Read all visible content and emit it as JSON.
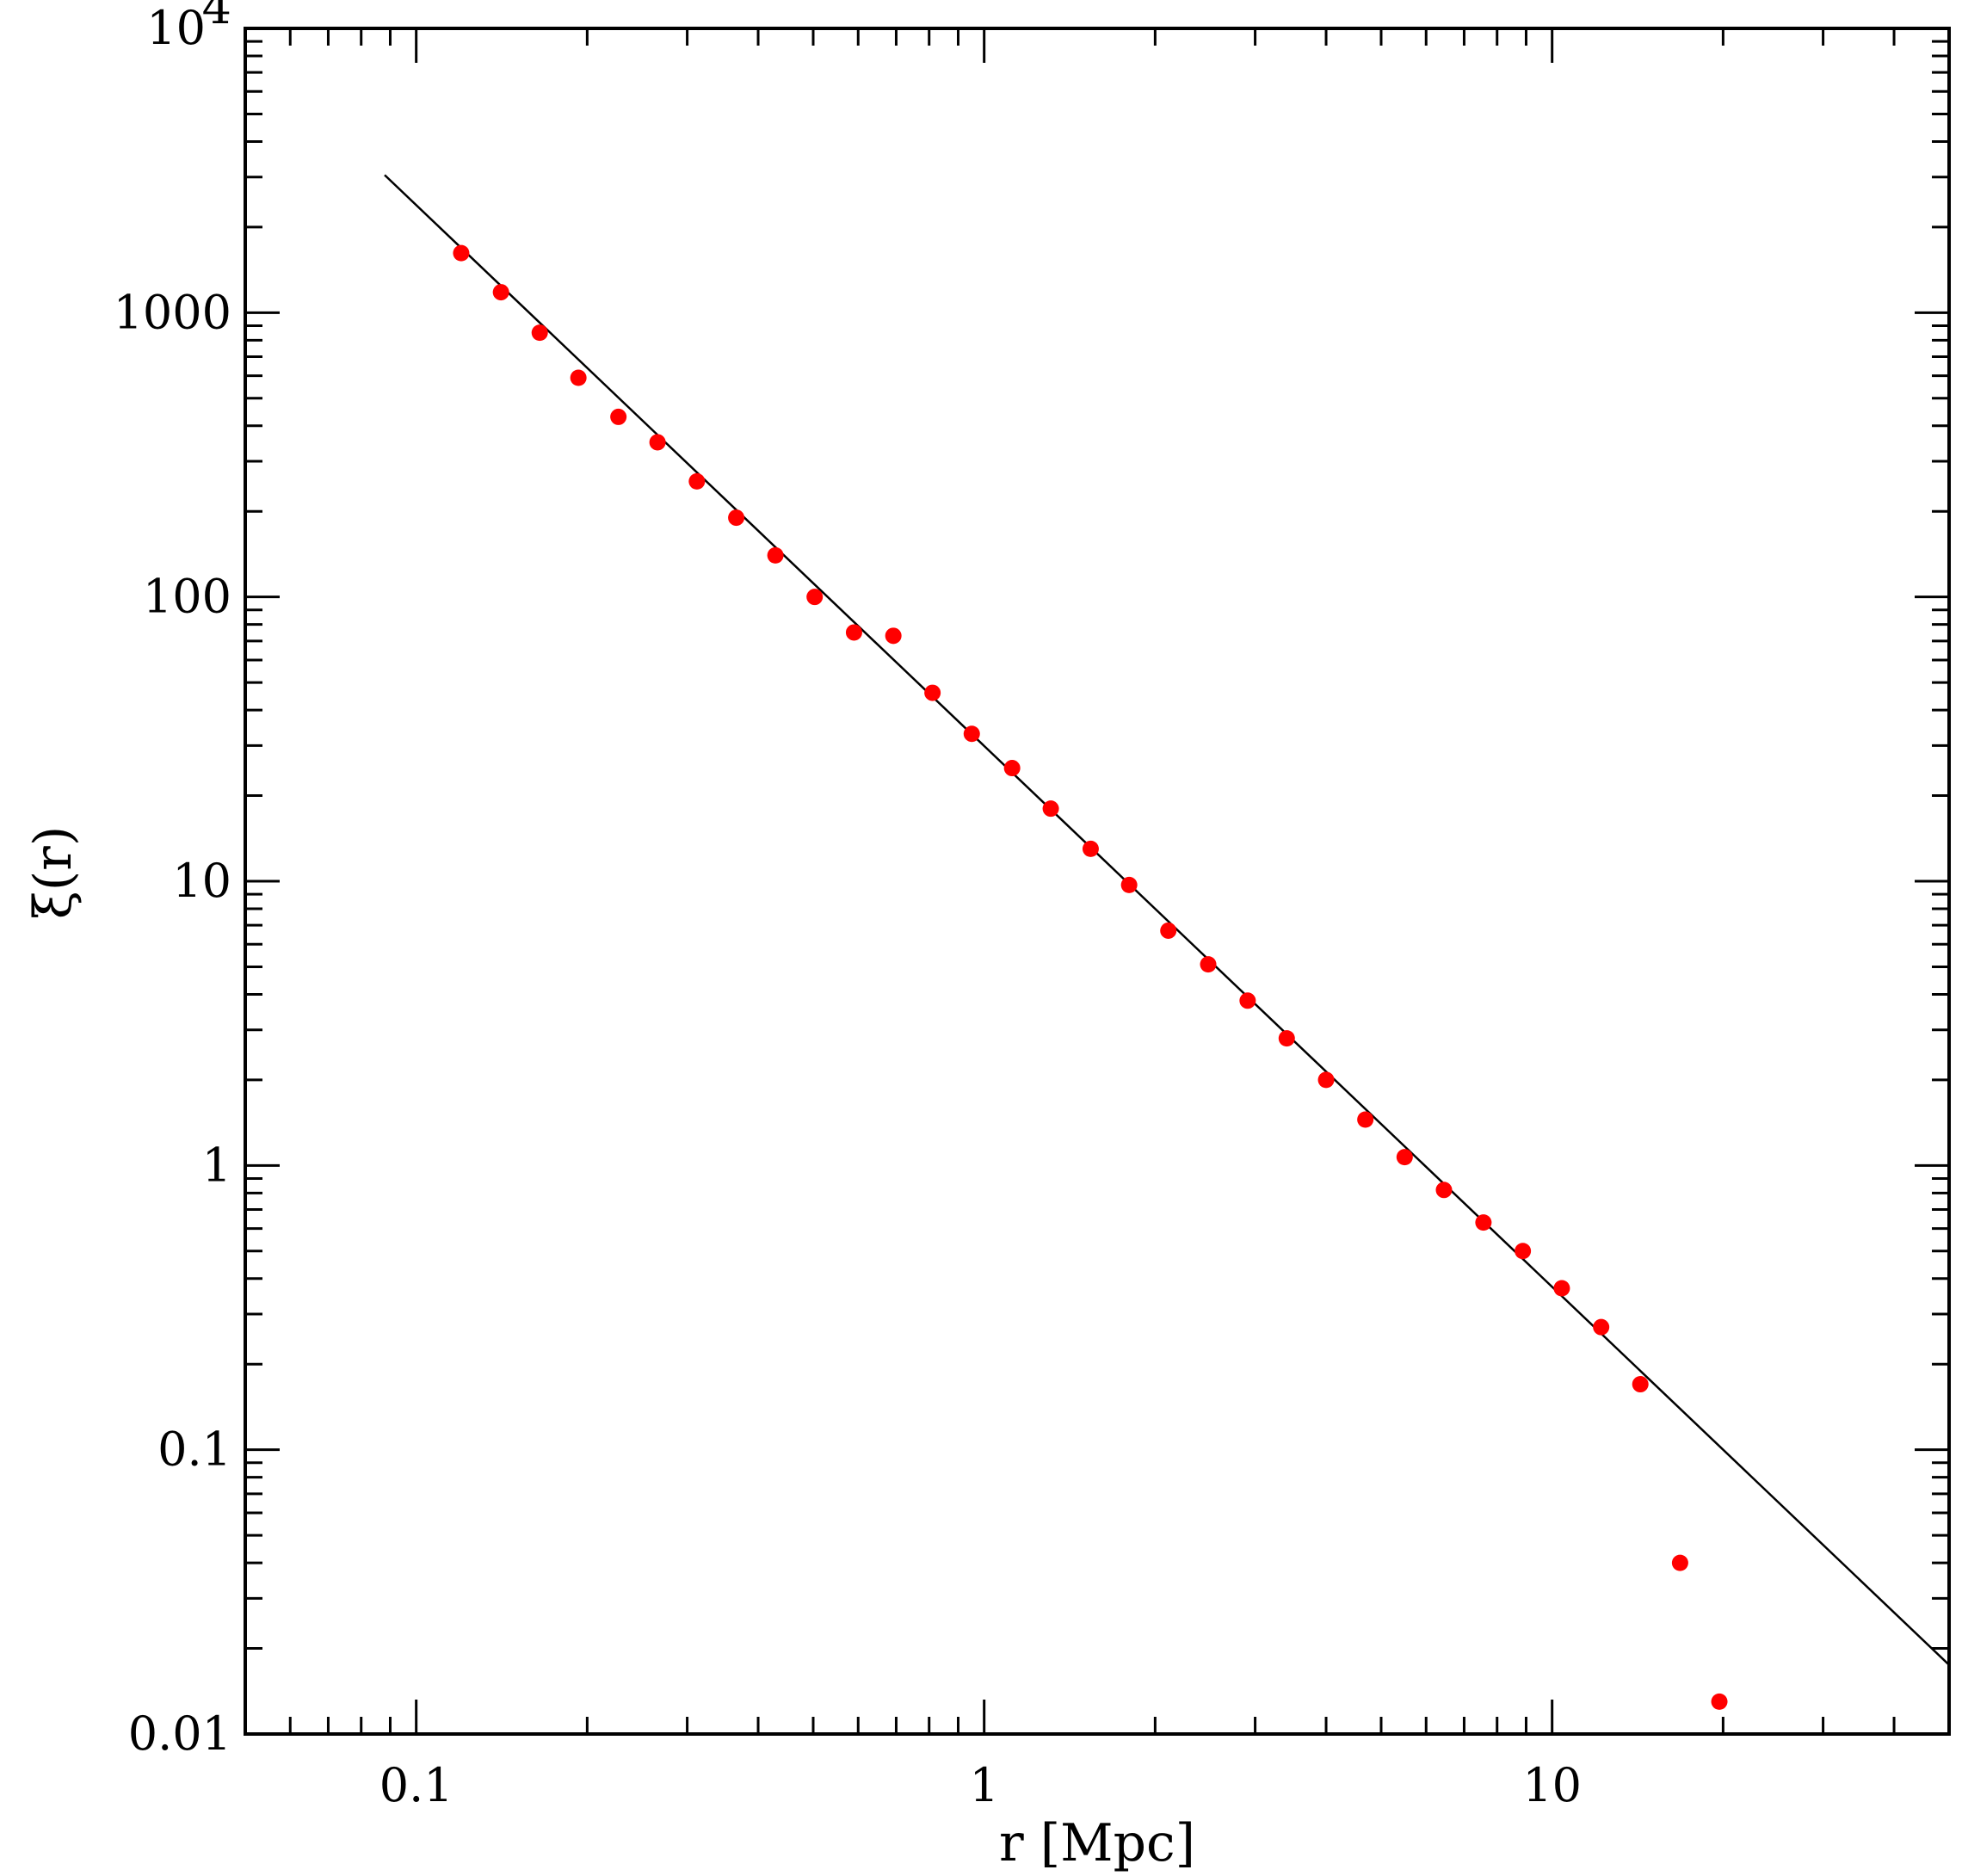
{
  "chart_data": {
    "type": "scatter",
    "title": "",
    "xlabel": "r [Mpc]",
    "ylabel": "ξ(r)",
    "x_scale": "log",
    "y_scale": "log",
    "xlim": [
      0.05,
      50
    ],
    "ylim": [
      0.01,
      10000
    ],
    "grid": false,
    "x_ticks": [
      {
        "value": 0.1,
        "label": "0.1"
      },
      {
        "value": 1,
        "label": "1"
      },
      {
        "value": 10,
        "label": "10"
      }
    ],
    "y_ticks": [
      {
        "value": 0.01,
        "label": "0.01"
      },
      {
        "value": 0.1,
        "label": "0.1"
      },
      {
        "value": 1,
        "label": "1"
      },
      {
        "value": 10,
        "label": "10"
      },
      {
        "value": 100,
        "label": "100"
      },
      {
        "value": 1000,
        "label": "1000"
      },
      {
        "value": 10000,
        "label": "10",
        "exponent": "4"
      }
    ],
    "series": [
      {
        "kind": "points",
        "color": "#ff0000",
        "x": [
          0.12,
          0.141,
          0.165,
          0.193,
          0.227,
          0.266,
          0.312,
          0.366,
          0.429,
          0.503,
          0.59,
          0.692,
          0.811,
          0.951,
          1.12,
          1.31,
          1.54,
          1.8,
          2.11,
          2.48,
          2.91,
          3.41,
          4.0,
          4.69,
          5.5,
          6.45,
          7.57,
          8.88,
          10.4,
          12.2,
          14.3,
          16.8,
          19.7
        ],
        "y": [
          1620,
          1180,
          850,
          590,
          430,
          350,
          255,
          190,
          140,
          100,
          75,
          73,
          46,
          33,
          25,
          18,
          13,
          9.7,
          6.7,
          5.1,
          3.8,
          2.8,
          2.0,
          1.45,
          1.07,
          0.82,
          0.63,
          0.5,
          0.37,
          0.27,
          0.17,
          0.04,
          0.013
        ]
      },
      {
        "kind": "line",
        "color": "#000000",
        "x": [
          0.088,
          50
        ],
        "y": [
          3050,
          0.0175
        ]
      }
    ]
  }
}
